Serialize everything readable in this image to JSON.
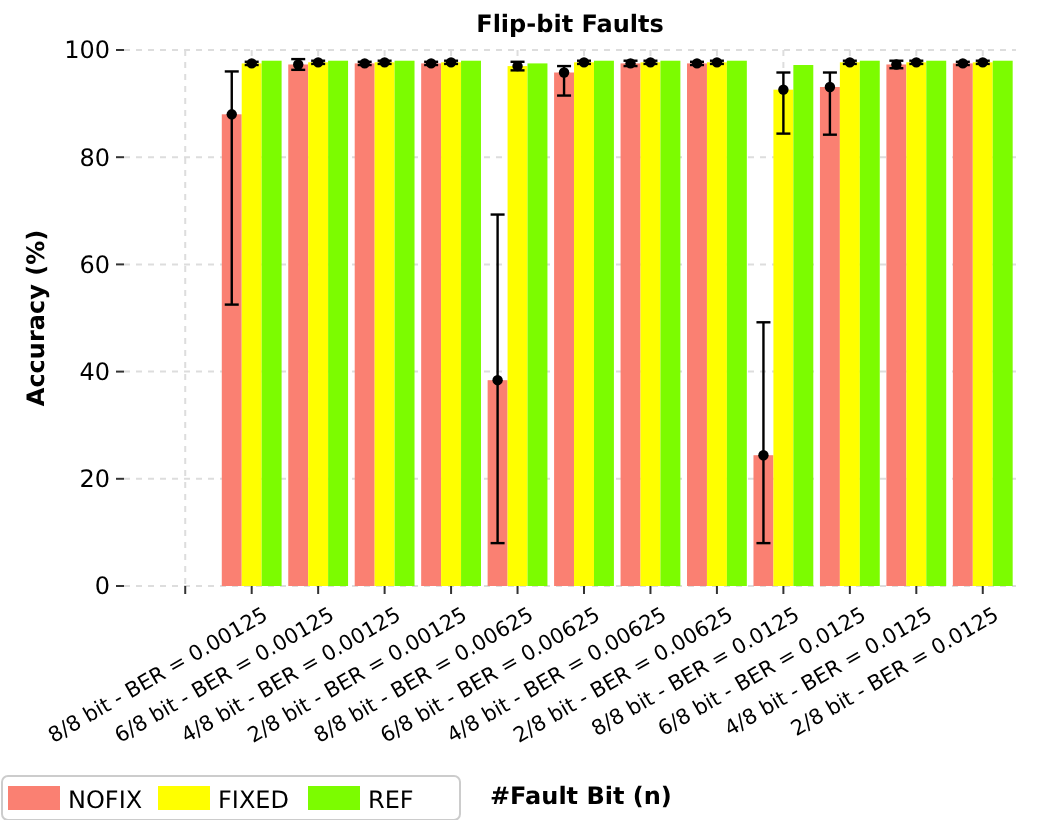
{
  "chart_data": {
    "type": "bar",
    "title": "Flip-bit Faults",
    "xlabel": "#Fault Bit (n)",
    "ylabel": "Accuracy (%)",
    "categories": [
      null,
      "8/8 bit - BER = 0.00125",
      "6/8 bit - BER = 0.00125",
      "4/8 bit - BER = 0.00125",
      "2/8 bit - BER = 0.00125",
      "8/8 bit - BER = 0.00625",
      "6/8 bit - BER = 0.00625",
      "4/8 bit - BER = 0.00625",
      "2/8 bit - BER = 0.00625",
      "8/8 bit - BER = 0.0125",
      "6/8 bit - BER = 0.0125",
      "4/8 bit - BER = 0.0125",
      "2/8 bit - BER = 0.0125"
    ],
    "series": [
      {
        "name": "NOFIX",
        "color": "#fa8072",
        "values": [
          null,
          88,
          97.3,
          97.5,
          97.5,
          38.4,
          95.8,
          97.5,
          97.5,
          24.4,
          93.1,
          97.3,
          97.5
        ]
      },
      {
        "name": "FIXED",
        "color": "#ffff00",
        "values": [
          null,
          97.5,
          97.7,
          97.7,
          97.7,
          97,
          97.7,
          97.7,
          97.7,
          92.6,
          97.7,
          97.7,
          97.7
        ]
      },
      {
        "name": "REF",
        "color": "#7cfc00",
        "values": [
          null,
          98,
          98,
          98,
          98,
          97.5,
          98,
          98,
          98,
          97.2,
          98,
          98,
          98
        ]
      },
      {
        "type": "scatter",
        "color": "#000000",
        "marker": "circle",
        "x": [
          "8/8 bit - BER = 0.00125",
          "6/8 bit - BER = 0.00125",
          "4/8 bit - BER = 0.00125",
          "2/8 bit - BER = 0.00125",
          "8/8 bit - BER = 0.00625",
          "6/8 bit - BER = 0.00625",
          "4/8 bit - BER = 0.00625",
          "2/8 bit - BER = 0.00625",
          "8/8 bit - BER = 0.0125",
          "6/8 bit - BER = 0.0125",
          "4/8 bit - BER = 0.0125",
          "2/8 bit - BER = 0.0125"
        ],
        "values": [
          88,
          97.3,
          97.5,
          97.5,
          38.4,
          95.8,
          97.5,
          97.5,
          24.4,
          93.1,
          97.3,
          97.5
        ],
        "errors": [
          [
            52.5,
            96
          ],
          [
            96.3,
            98.3
          ],
          0.3,
          0.3,
          [
            8,
            69.3
          ],
          [
            91.5,
            97
          ],
          0.5,
          0.3,
          [
            8,
            49.2
          ],
          [
            84.2,
            95.8
          ],
          0.7,
          0.3
        ]
      },
      {
        "type": "scatter",
        "color": "#000000",
        "marker": "circle",
        "x": [
          "8/8 bit - BER = 0.00125",
          "6/8 bit - BER = 0.00125",
          "4/8 bit - BER = 0.00125",
          "2/8 bit - BER = 0.00125",
          "8/8 bit - BER = 0.00625",
          "6/8 bit - BER = 0.00625",
          "4/8 bit - BER = 0.00625",
          "2/8 bit - BER = 0.00625",
          "8/8 bit - BER = 0.0125",
          "6/8 bit - BER = 0.0125",
          "4/8 bit - BER = 0.0125",
          "2/8 bit - BER = 0.0125"
        ],
        "values": [
          97.5,
          97.7,
          97.7,
          97.7,
          97,
          97.7,
          97.7,
          97.7,
          92.6,
          97.7,
          97.7,
          97.7
        ],
        "errors": [
          0.3,
          0.3,
          0.3,
          0.3,
          0.8,
          0.3,
          0.3,
          0.3,
          [
            84.4,
            95.8
          ],
          0.3,
          0.3,
          0.3
        ]
      }
    ],
    "ylim": [
      0,
      100
    ],
    "yticks": [
      0,
      20,
      40,
      60,
      80,
      100
    ],
    "grid": true,
    "legend": "bottom left"
  }
}
